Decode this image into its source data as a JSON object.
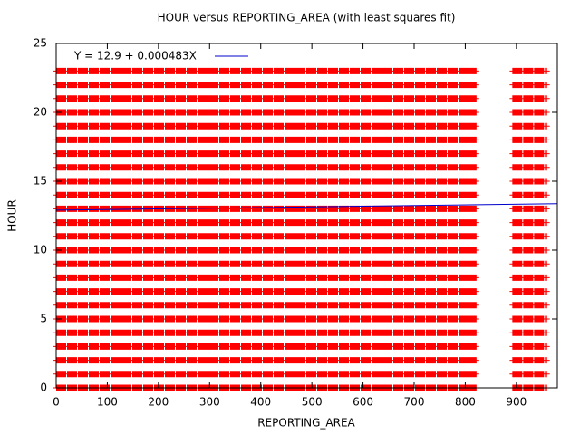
{
  "chart_data": {
    "type": "scatter-bands",
    "title": "HOUR versus REPORTING_AREA (with least squares fit)",
    "x_label": "REPORTING_AREA",
    "y_label": "HOUR",
    "color": "#ff0000",
    "rows": [
      0,
      1,
      2,
      3,
      4,
      5,
      6,
      7,
      8,
      9,
      10,
      11,
      12,
      13,
      14,
      15,
      16,
      17,
      18,
      19,
      20,
      21,
      22,
      23
    ],
    "x_ranges": [
      [
        0,
        822
      ],
      [
        892,
        960
      ]
    ],
    "fit": {
      "label": "Y = 12.9 + 0.000483X",
      "color": "#0000cc",
      "x": [
        0,
        980
      ],
      "y": [
        12.9,
        13.37
      ]
    },
    "xlim": [
      0,
      980
    ],
    "ylim": [
      0,
      25
    ],
    "xticks": [
      0,
      100,
      200,
      300,
      400,
      500,
      600,
      700,
      800,
      900
    ],
    "yticks": [
      0,
      5,
      10,
      15,
      20,
      25
    ]
  }
}
